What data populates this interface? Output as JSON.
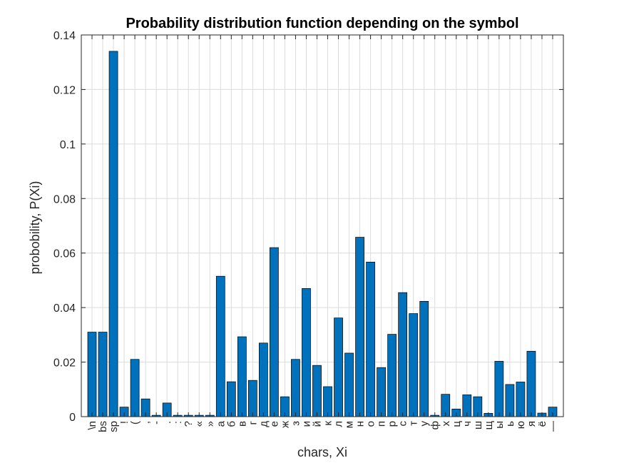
{
  "chart_data": {
    "type": "bar",
    "title": "Probability distribution function depending on the symbol",
    "xlabel": "chars, Xi",
    "ylabel": "probobility, P(Xi)",
    "ylim": [
      0,
      0.14
    ],
    "yticks": [
      0,
      0.02,
      0.04,
      0.06,
      0.08,
      0.1,
      0.12,
      0.14
    ],
    "ytick_labels": [
      "0",
      "0.02",
      "0.04",
      "0.06",
      "0.08",
      "0.1",
      "0.12",
      "0.14"
    ],
    "grid": true,
    "bar_color": "#0072BD",
    "categories": [
      "\\n",
      "bs",
      "sp",
      "!",
      "(",
      ",",
      "-",
      ".",
      ":",
      "?",
      "«",
      "»",
      "а",
      "б",
      "в",
      "г",
      "д",
      "е",
      "ж",
      "з",
      "и",
      "й",
      "к",
      "л",
      "м",
      "н",
      "о",
      "п",
      "р",
      "с",
      "т",
      "у",
      "ф",
      "х",
      "ц",
      "ч",
      "ш",
      "щ",
      "ы",
      "ь",
      "ю",
      "я",
      "ё",
      "—"
    ],
    "values": [
      0.031,
      0.031,
      0.134,
      0.0035,
      0.021,
      0.0065,
      0.0005,
      0.005,
      0.0005,
      0.0005,
      0.0005,
      0.0005,
      0.0515,
      0.0128,
      0.0293,
      0.0133,
      0.027,
      0.062,
      0.0073,
      0.021,
      0.047,
      0.0188,
      0.011,
      0.0362,
      0.0233,
      0.0658,
      0.0567,
      0.018,
      0.0302,
      0.0455,
      0.0378,
      0.0423,
      0.0005,
      0.0082,
      0.0028,
      0.008,
      0.0073,
      0.0012,
      0.0203,
      0.0118,
      0.0127,
      0.024,
      0.0013,
      0.0035
    ]
  }
}
